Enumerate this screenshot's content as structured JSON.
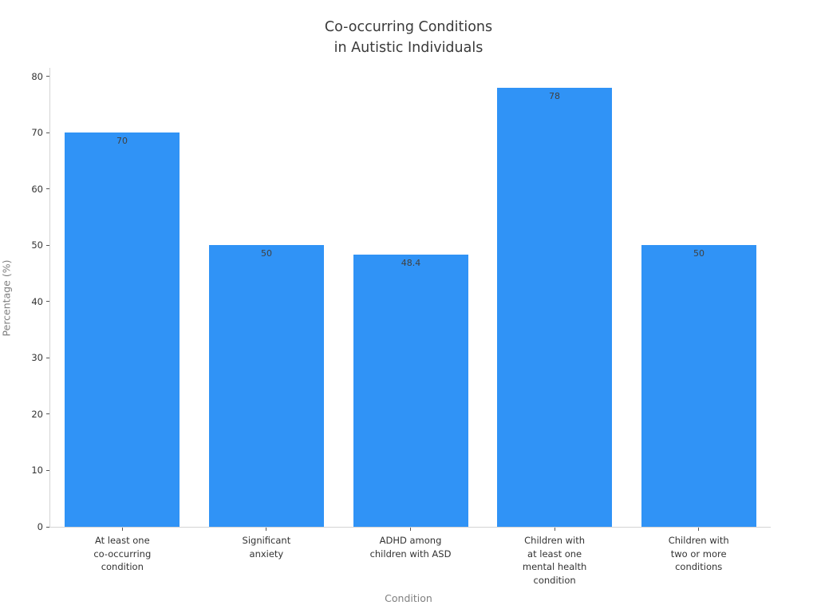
{
  "chart_data": {
    "type": "bar",
    "title": "Co-occurring Conditions\nin Autistic Individuals",
    "xlabel": "Condition",
    "ylabel": "Percentage (%)",
    "categories": [
      "At least one\nco-occurring\ncondition",
      "Significant\nanxiety",
      "ADHD among\nchildren with ASD",
      "Children with\nat least one\nmental health\ncondition",
      "Children with\ntwo or more\nconditions"
    ],
    "values": [
      70,
      50,
      48.4,
      78,
      50
    ],
    "value_labels": [
      "70",
      "50",
      "48.4",
      "78",
      "50"
    ],
    "yticks": [
      0,
      10,
      20,
      30,
      40,
      50,
      60,
      70,
      80
    ],
    "ylim": [
      0,
      81.5
    ],
    "grid": false,
    "legend_position": "none",
    "bar_color": "#3093F6",
    "background_color": "#ffffff"
  }
}
